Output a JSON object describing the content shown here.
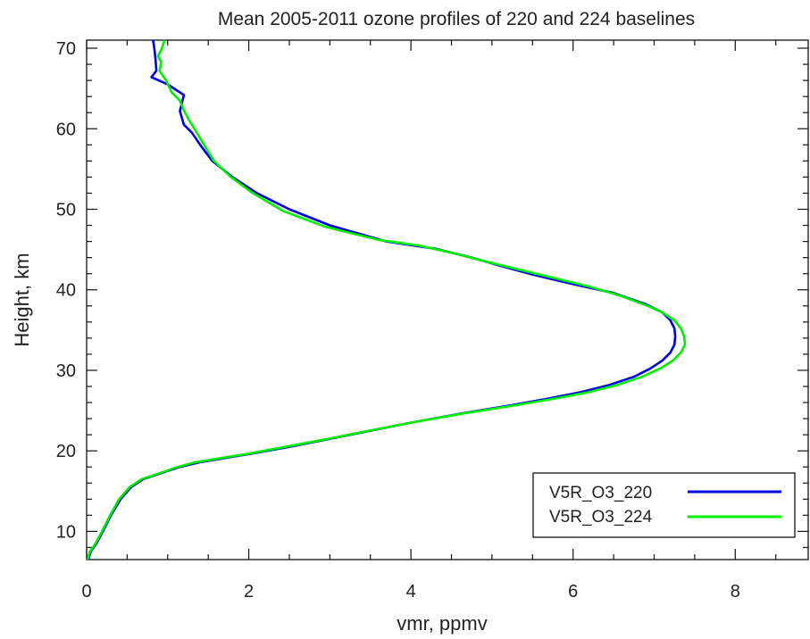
{
  "chart_data": {
    "type": "line",
    "title": "Mean 2005-2011 ozone profiles of 220 and 224 baselines",
    "xlabel": "vmr, ppmv",
    "ylabel": "Height, km",
    "xlim": [
      0,
      8.9
    ],
    "ylim": [
      6.5,
      71
    ],
    "x_ticks": [
      0,
      2,
      4,
      6,
      8
    ],
    "y_ticks": [
      10,
      20,
      30,
      40,
      50,
      60,
      70
    ],
    "grid": false,
    "legend_position": "bottom-right",
    "colors": {
      "V5R_O3_220": "#0000dd",
      "V5R_O3_224": "#00ee00"
    },
    "series": [
      {
        "name": "V5R_O3_220",
        "color": "#0000dd",
        "points": [
          [
            0.02,
            6.5
          ],
          [
            0.05,
            7.5
          ],
          [
            0.12,
            8.5
          ],
          [
            0.2,
            10
          ],
          [
            0.3,
            12
          ],
          [
            0.42,
            14
          ],
          [
            0.55,
            15.5
          ],
          [
            0.7,
            16.5
          ],
          [
            0.85,
            17
          ],
          [
            1.0,
            17.5
          ],
          [
            1.15,
            18
          ],
          [
            1.4,
            18.6
          ],
          [
            1.7,
            19.1
          ],
          [
            2.0,
            19.6
          ],
          [
            2.5,
            20.5
          ],
          [
            3.0,
            21.5
          ],
          [
            3.5,
            22.5
          ],
          [
            4.0,
            23.5
          ],
          [
            4.6,
            24.6
          ],
          [
            5.2,
            25.6
          ],
          [
            5.7,
            26.5
          ],
          [
            6.1,
            27.3
          ],
          [
            6.45,
            28.2
          ],
          [
            6.75,
            29.2
          ],
          [
            6.95,
            30.2
          ],
          [
            7.1,
            31.2
          ],
          [
            7.2,
            32.2
          ],
          [
            7.25,
            33.2
          ],
          [
            7.26,
            34.2
          ],
          [
            7.25,
            35.2
          ],
          [
            7.2,
            36.2
          ],
          [
            7.1,
            37.2
          ],
          [
            6.9,
            38.2
          ],
          [
            6.5,
            39.6
          ],
          [
            6.0,
            40.7
          ],
          [
            5.5,
            41.9
          ],
          [
            5.1,
            43.0
          ],
          [
            4.75,
            44.0
          ],
          [
            4.3,
            45.1
          ],
          [
            3.7,
            46.0
          ],
          [
            3.0,
            48.0
          ],
          [
            2.5,
            50.0
          ],
          [
            2.1,
            52.0
          ],
          [
            1.8,
            54.0
          ],
          [
            1.55,
            56.0
          ],
          [
            1.4,
            58.0
          ],
          [
            1.3,
            59.5
          ],
          [
            1.2,
            60.5
          ],
          [
            1.15,
            62.2
          ],
          [
            1.2,
            64.2
          ],
          [
            1.0,
            65.5
          ],
          [
            0.8,
            66.4
          ],
          [
            0.86,
            67.2
          ],
          [
            0.85,
            68.5
          ],
          [
            0.84,
            69.5
          ],
          [
            0.83,
            70.3
          ],
          [
            0.82,
            71
          ]
        ]
      },
      {
        "name": "V5R_O3_224",
        "color": "#00ee00",
        "points": [
          [
            0.01,
            6.5
          ],
          [
            0.04,
            7.5
          ],
          [
            0.11,
            8.5
          ],
          [
            0.19,
            10
          ],
          [
            0.29,
            12
          ],
          [
            0.4,
            14
          ],
          [
            0.53,
            15.5
          ],
          [
            0.68,
            16.5
          ],
          [
            0.83,
            17
          ],
          [
            0.98,
            17.5
          ],
          [
            1.12,
            18
          ],
          [
            1.35,
            18.6
          ],
          [
            1.65,
            19.1
          ],
          [
            1.97,
            19.6
          ],
          [
            2.45,
            20.5
          ],
          [
            2.98,
            21.5
          ],
          [
            3.48,
            22.5
          ],
          [
            4.0,
            23.5
          ],
          [
            4.62,
            24.6
          ],
          [
            5.25,
            25.6
          ],
          [
            5.78,
            26.5
          ],
          [
            6.2,
            27.3
          ],
          [
            6.55,
            28.2
          ],
          [
            6.85,
            29.2
          ],
          [
            7.07,
            30.2
          ],
          [
            7.23,
            31.2
          ],
          [
            7.33,
            32.2
          ],
          [
            7.38,
            33.2
          ],
          [
            7.37,
            34.2
          ],
          [
            7.33,
            35.2
          ],
          [
            7.25,
            36.2
          ],
          [
            7.1,
            37.2
          ],
          [
            6.92,
            38.0
          ],
          [
            6.6,
            39.2
          ],
          [
            6.2,
            40.4
          ],
          [
            5.75,
            41.5
          ],
          [
            5.3,
            42.6
          ],
          [
            4.85,
            43.7
          ],
          [
            4.5,
            44.6
          ],
          [
            4.1,
            45.5
          ],
          [
            3.6,
            46.2
          ],
          [
            2.95,
            47.8
          ],
          [
            2.42,
            49.8
          ],
          [
            2.05,
            52.0
          ],
          [
            1.78,
            54.0
          ],
          [
            1.57,
            56.0
          ],
          [
            1.45,
            58.0
          ],
          [
            1.33,
            60.0
          ],
          [
            1.25,
            61.3
          ],
          [
            1.2,
            62.3
          ],
          [
            1.15,
            63.5
          ],
          [
            1.05,
            64.5
          ],
          [
            0.98,
            66.0
          ],
          [
            0.9,
            67.2
          ],
          [
            0.92,
            68.3
          ],
          [
            0.88,
            69.0
          ],
          [
            0.93,
            70.0
          ],
          [
            0.96,
            71
          ]
        ]
      }
    ]
  }
}
